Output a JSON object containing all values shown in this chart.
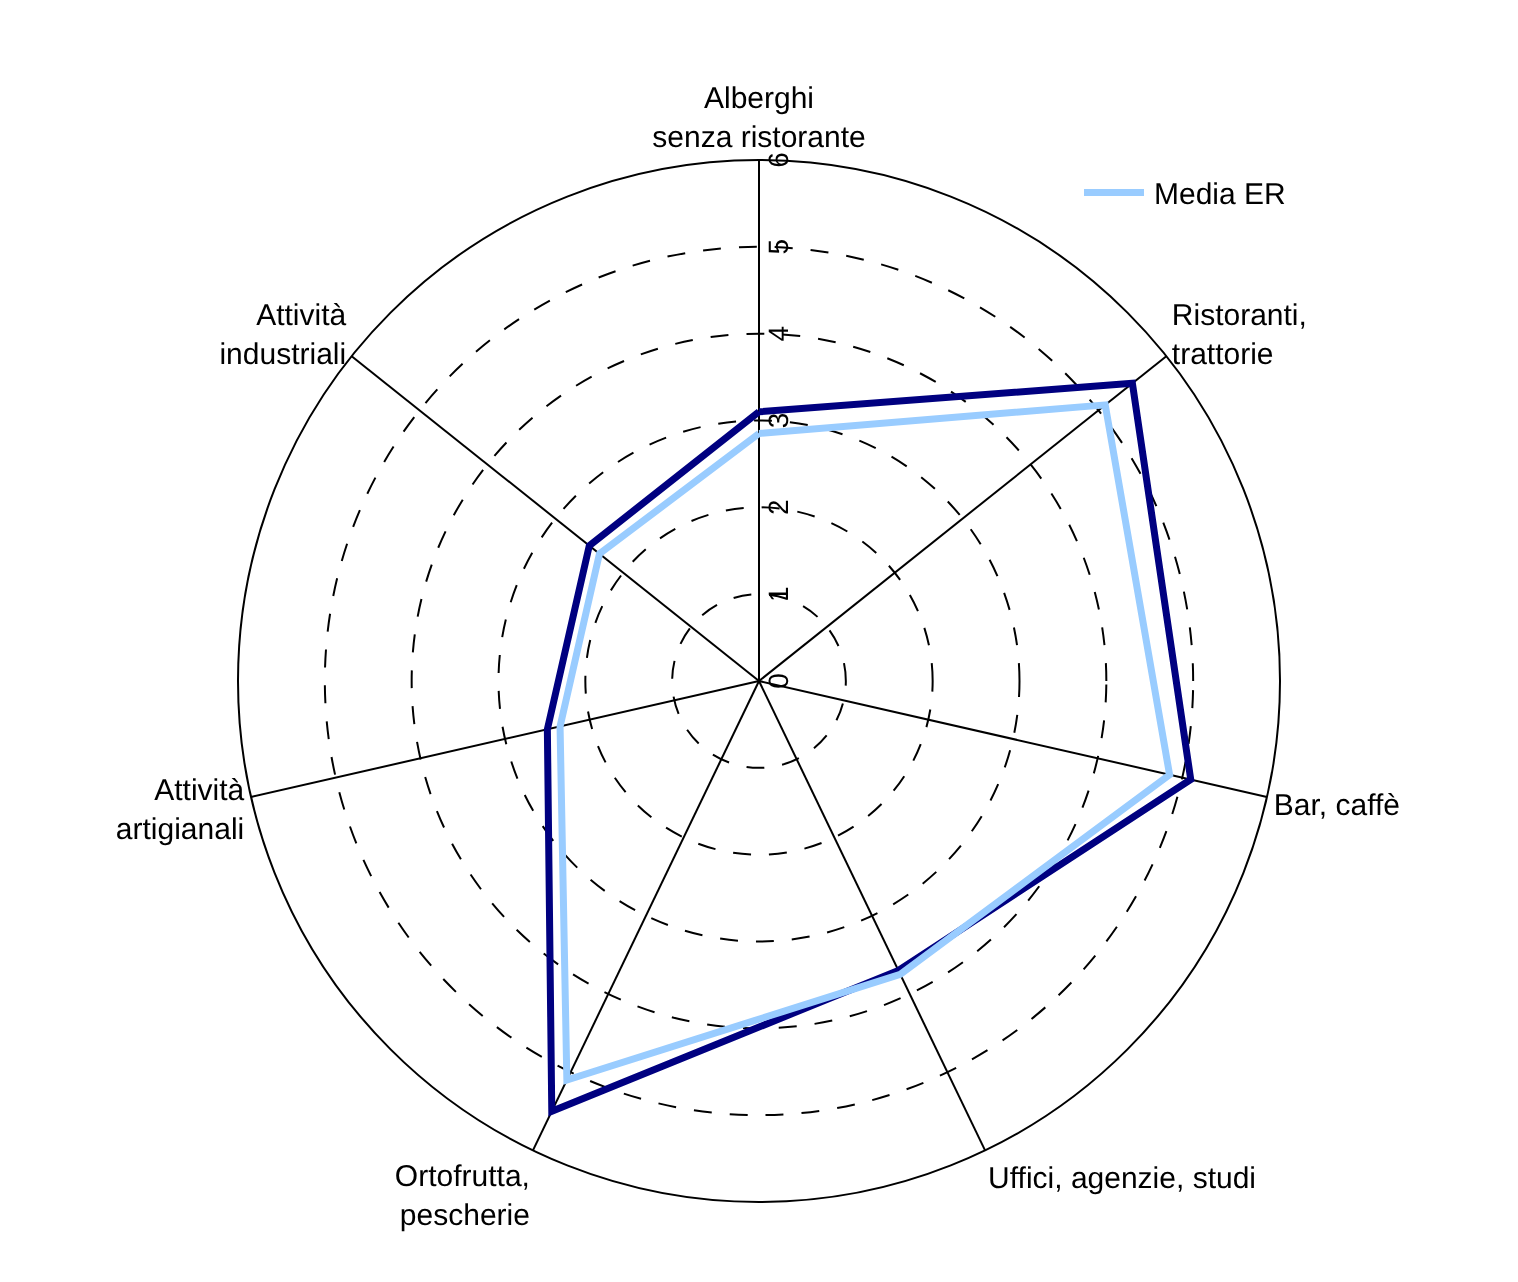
{
  "chart_data": {
    "type": "radar",
    "categories": [
      "Alberghi\nsenza ristorante",
      "Ristoranti,\ntrattorie",
      "Bar, caffè",
      "Uffici, agenzie, studi",
      "Ortofrutta,\npescherie",
      "Attività\nartigianali",
      "Attività\nindustriali"
    ],
    "series": [
      {
        "color": "#000080",
        "values": [
          3.1,
          5.5,
          5.1,
          3.7,
          5.5,
          2.5,
          2.5
        ]
      },
      {
        "name": "Media ER",
        "color": "#99ccff",
        "values": [
          2.85,
          5.1,
          4.85,
          3.75,
          5.1,
          2.35,
          2.35
        ]
      }
    ],
    "ylim": [
      0,
      6
    ],
    "yticks": [
      0,
      1,
      2,
      3,
      4,
      5,
      6
    ],
    "grid": true,
    "legend": "top right",
    "marker": "none",
    "line_style": "solid"
  }
}
